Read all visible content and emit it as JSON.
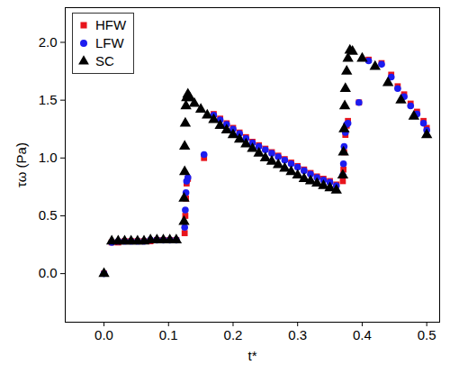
{
  "chart_data": {
    "type": "scatter",
    "x_label": "t*",
    "y_label": "τω (Pa)",
    "xlim": [
      -0.06,
      0.52
    ],
    "ylim": [
      -0.42,
      2.3
    ],
    "xticks": [
      {
        "value": 0,
        "label": "0.0"
      },
      0.1,
      0.2,
      0.3,
      0.4,
      0.5
    ],
    "yticks": [
      {
        "value": 0,
        "label": "0.0"
      },
      0.5,
      {
        "value": 1,
        "label": "1.0"
      },
      1.5,
      {
        "value": 2,
        "label": "2.0"
      }
    ],
    "grid": false,
    "legend": "upper left",
    "series": [
      {
        "name": "HFW",
        "color": "#e8141c",
        "marker": "square",
        "x": [
          0.0,
          0.012,
          0.022,
          0.032,
          0.042,
          0.052,
          0.062,
          0.072,
          0.082,
          0.092,
          0.102,
          0.112,
          0.125,
          0.126,
          0.127,
          0.128,
          0.13,
          0.155,
          0.17,
          0.18,
          0.19,
          0.2,
          0.21,
          0.22,
          0.23,
          0.24,
          0.25,
          0.26,
          0.27,
          0.28,
          0.29,
          0.3,
          0.31,
          0.32,
          0.33,
          0.34,
          0.35,
          0.36,
          0.37,
          0.371,
          0.372,
          0.374,
          0.376,
          0.378,
          0.395,
          0.41,
          0.43,
          0.445,
          0.455,
          0.465,
          0.475,
          0.485,
          0.495,
          0.5
        ],
        "values": [
          0.0,
          0.27,
          0.27,
          0.28,
          0.28,
          0.28,
          0.28,
          0.28,
          0.29,
          0.29,
          0.29,
          0.29,
          0.35,
          0.5,
          0.65,
          0.78,
          0.82,
          1.0,
          1.38,
          1.34,
          1.3,
          1.26,
          1.22,
          1.18,
          1.14,
          1.11,
          1.08,
          1.05,
          1.02,
          0.99,
          0.96,
          0.93,
          0.9,
          0.87,
          0.84,
          0.82,
          0.8,
          0.77,
          0.8,
          0.9,
          1.05,
          1.2,
          1.28,
          1.32,
          1.48,
          1.85,
          1.82,
          1.72,
          1.62,
          1.55,
          1.47,
          1.4,
          1.32,
          1.26
        ]
      },
      {
        "name": "LFW",
        "color": "#1c1cf0",
        "marker": "circle",
        "x": [
          0.0,
          0.012,
          0.022,
          0.032,
          0.042,
          0.052,
          0.062,
          0.072,
          0.082,
          0.092,
          0.102,
          0.112,
          0.125,
          0.126,
          0.127,
          0.128,
          0.13,
          0.155,
          0.17,
          0.18,
          0.19,
          0.2,
          0.21,
          0.22,
          0.23,
          0.24,
          0.25,
          0.26,
          0.27,
          0.28,
          0.29,
          0.3,
          0.31,
          0.32,
          0.33,
          0.34,
          0.35,
          0.36,
          0.37,
          0.371,
          0.372,
          0.374,
          0.376,
          0.378,
          0.395,
          0.41,
          0.43,
          0.445,
          0.455,
          0.465,
          0.475,
          0.485,
          0.495,
          0.5
        ],
        "values": [
          0.0,
          0.27,
          0.28,
          0.28,
          0.28,
          0.28,
          0.28,
          0.29,
          0.29,
          0.29,
          0.29,
          0.29,
          0.4,
          0.55,
          0.7,
          0.8,
          0.83,
          1.03,
          1.37,
          1.33,
          1.29,
          1.25,
          1.21,
          1.17,
          1.13,
          1.1,
          1.07,
          1.04,
          1.01,
          0.98,
          0.95,
          0.92,
          0.89,
          0.86,
          0.83,
          0.81,
          0.79,
          0.76,
          0.85,
          0.95,
          1.1,
          1.22,
          1.29,
          1.3,
          1.48,
          1.84,
          1.81,
          1.7,
          1.6,
          1.53,
          1.45,
          1.38,
          1.3,
          1.24
        ]
      },
      {
        "name": "SC",
        "color": "#000000",
        "marker": "triangle",
        "x": [
          0.0,
          0.012,
          0.022,
          0.032,
          0.042,
          0.052,
          0.062,
          0.072,
          0.082,
          0.092,
          0.102,
          0.112,
          0.124,
          0.124,
          0.125,
          0.125,
          0.126,
          0.127,
          0.128,
          0.13,
          0.133,
          0.14,
          0.15,
          0.16,
          0.17,
          0.18,
          0.19,
          0.2,
          0.21,
          0.22,
          0.23,
          0.24,
          0.25,
          0.26,
          0.27,
          0.28,
          0.29,
          0.3,
          0.31,
          0.32,
          0.33,
          0.34,
          0.35,
          0.36,
          0.37,
          0.371,
          0.372,
          0.373,
          0.374,
          0.376,
          0.378,
          0.381,
          0.385,
          0.4,
          0.42,
          0.44,
          0.46,
          0.48,
          0.5
        ],
        "values": [
          0.0,
          0.28,
          0.28,
          0.28,
          0.28,
          0.28,
          0.28,
          0.29,
          0.29,
          0.29,
          0.29,
          0.29,
          0.45,
          0.65,
          0.88,
          1.1,
          1.3,
          1.45,
          1.52,
          1.55,
          1.52,
          1.47,
          1.42,
          1.37,
          1.33,
          1.28,
          1.24,
          1.2,
          1.16,
          1.12,
          1.08,
          1.04,
          1.0,
          0.97,
          0.94,
          0.91,
          0.88,
          0.85,
          0.82,
          0.8,
          0.78,
          0.76,
          0.74,
          0.72,
          0.85,
          1.05,
          1.25,
          1.45,
          1.6,
          1.75,
          1.86,
          1.93,
          1.92,
          1.86,
          1.79,
          1.65,
          1.5,
          1.36,
          1.2
        ]
      }
    ]
  }
}
